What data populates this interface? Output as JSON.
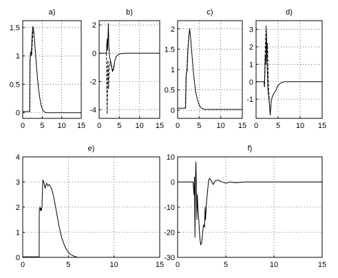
{
  "chart_data": [
    {
      "title": "a)",
      "type": "line",
      "xlim": [
        0,
        15
      ],
      "ylim": [
        -0.1,
        1.62
      ],
      "xticks": [
        "0",
        "5",
        "10",
        "15"
      ],
      "yticks": [
        "0",
        "0.5",
        "1",
        "1.5"
      ],
      "grid": true,
      "series": [
        {
          "style": "solid",
          "x": [
            0,
            1.8,
            1.85,
            2.0,
            2.2,
            2.4,
            2.6,
            2.8,
            3.0,
            3.2,
            3.5,
            3.8,
            4.1,
            4.4,
            4.7,
            5.0,
            5.4,
            6.0,
            7.0,
            9.0,
            15.0
          ],
          "y": [
            0.02,
            0.02,
            0.9,
            1.05,
            1.02,
            1.35,
            1.52,
            1.45,
            1.3,
            1.12,
            0.85,
            0.6,
            0.4,
            0.25,
            0.14,
            0.07,
            0.02,
            0.0,
            0.0,
            0.0,
            0.0
          ]
        },
        {
          "style": "dashed",
          "x": [
            1.8,
            1.9,
            2.1,
            2.3,
            2.5,
            2.7
          ],
          "y": [
            0.02,
            0.95,
            1.08,
            1.0,
            1.3,
            1.48
          ]
        }
      ]
    },
    {
      "title": "b)",
      "type": "line",
      "xlim": [
        0,
        15
      ],
      "ylim": [
        -4.6,
        2.3
      ],
      "xticks": [
        "0",
        "5",
        "10",
        "15"
      ],
      "yticks": [
        "-4",
        "-2",
        "0",
        "2"
      ],
      "grid": true,
      "series": [
        {
          "style": "solid",
          "x": [
            0,
            1.8,
            1.9,
            2.0,
            2.1,
            2.2,
            2.3,
            2.4,
            2.6,
            2.8,
            3.0,
            3.3,
            3.6,
            3.9,
            4.3,
            4.8,
            5.5,
            7,
            15
          ],
          "y": [
            0,
            0,
            0.6,
            1.0,
            0.2,
            1.2,
            2.1,
            0.5,
            -0.3,
            -0.5,
            -0.8,
            -1.3,
            -1.1,
            -0.5,
            -0.2,
            -0.1,
            -0.02,
            0,
            0
          ]
        },
        {
          "style": "dashed",
          "x": [
            1.8,
            1.9,
            2.0,
            2.1,
            2.2,
            2.35,
            2.5,
            2.7,
            3.0,
            3.4,
            3.8
          ],
          "y": [
            0,
            -2.0,
            -4.3,
            -1.5,
            -0.5,
            -2.5,
            -1.0,
            -0.6,
            -0.9,
            -1.2,
            -0.7
          ]
        }
      ]
    },
    {
      "title": "c)",
      "type": "line",
      "xlim": [
        0,
        15
      ],
      "ylim": [
        -0.2,
        2.2
      ],
      "xticks": [
        "0",
        "5",
        "10",
        "15"
      ],
      "yticks": [
        "0",
        "0.5",
        "1",
        "1.5",
        "2"
      ],
      "grid": true,
      "series": [
        {
          "style": "solid",
          "x": [
            0,
            1.8,
            1.85,
            2.0,
            2.2,
            2.4,
            2.6,
            2.8,
            3.0,
            3.3,
            3.6,
            3.9,
            4.2,
            4.5,
            4.9,
            5.4,
            6.2,
            8.0,
            15.0
          ],
          "y": [
            0.05,
            0.05,
            0.05,
            0.9,
            0.95,
            1.5,
            1.8,
            2.0,
            1.8,
            1.4,
            1.0,
            0.7,
            0.45,
            0.3,
            0.15,
            0.06,
            0.02,
            0.02,
            0.02
          ]
        },
        {
          "style": "dashed",
          "x": [
            1.8,
            1.95,
            2.15,
            2.35,
            2.55,
            2.75
          ],
          "y": [
            0.05,
            0.85,
            1.0,
            1.45,
            1.75,
            1.95
          ]
        }
      ]
    },
    {
      "title": "d)",
      "type": "line",
      "xlim": [
        0,
        15
      ],
      "ylim": [
        -2.1,
        3.5
      ],
      "xticks": [
        "0",
        "5",
        "10",
        "15"
      ],
      "yticks": [
        "-1",
        "0",
        "1",
        "2",
        "3"
      ],
      "grid": true,
      "series": [
        {
          "style": "solid",
          "x": [
            0,
            1.8,
            1.9,
            2.0,
            2.1,
            2.2,
            2.35,
            2.5,
            2.7,
            3.0,
            3.2,
            3.5,
            3.8,
            4.2,
            4.5,
            4.8,
            5.2,
            5.8,
            6.5,
            8,
            15
          ],
          "y": [
            0,
            0,
            -0.3,
            0.5,
            1.5,
            1.0,
            2.9,
            1.0,
            -0.5,
            -1.2,
            -1.9,
            -1.0,
            -0.8,
            -0.6,
            -0.5,
            -0.3,
            -0.15,
            -0.05,
            0,
            0,
            0
          ]
        },
        {
          "style": "dashed",
          "x": [
            1.9,
            2.1,
            2.3,
            2.45,
            2.6,
            2.8,
            3.1,
            3.3
          ],
          "y": [
            0,
            2.0,
            3.2,
            1.2,
            2.2,
            -0.2,
            -1.5,
            -2.0
          ]
        }
      ]
    },
    {
      "title": "e)",
      "type": "line",
      "xlim": [
        0,
        15
      ],
      "ylim": [
        0,
        4
      ],
      "xticks": [
        "0",
        "5",
        "10",
        "15"
      ],
      "yticks": [
        "0",
        "1",
        "2",
        "3",
        "4"
      ],
      "grid": true,
      "series": [
        {
          "style": "solid",
          "x": [
            0,
            1.8,
            1.81,
            1.9,
            1.95,
            2.0,
            2.05,
            2.1,
            2.2,
            2.3,
            2.45,
            2.6,
            2.75,
            2.9,
            3.05,
            3.2,
            3.4,
            3.6,
            3.8,
            4.0,
            4.3,
            4.6,
            4.9,
            5.2,
            5.6,
            6.0,
            7.0,
            15.0
          ],
          "y": [
            0.02,
            0.02,
            1.9,
            2.0,
            1.85,
            1.95,
            1.88,
            2.0,
            3.08,
            3.0,
            2.75,
            2.95,
            2.85,
            2.9,
            2.8,
            2.7,
            2.4,
            2.0,
            1.6,
            1.2,
            0.75,
            0.45,
            0.25,
            0.12,
            0.05,
            0.0,
            0.0,
            0.0
          ]
        }
      ]
    },
    {
      "title": "f)",
      "type": "line",
      "xlim": [
        0,
        15
      ],
      "ylim": [
        -30,
        10
      ],
      "xticks": [
        "0",
        "5",
        "10",
        "15"
      ],
      "yticks": [
        "-30",
        "-20",
        "-10",
        "0",
        "10"
      ],
      "grid": true,
      "series": [
        {
          "style": "solid",
          "x": [
            0,
            1.5,
            1.6,
            1.7,
            1.75,
            1.8,
            1.85,
            1.9,
            1.95,
            2.0,
            2.05,
            2.1,
            2.2,
            2.3,
            2.4,
            2.5,
            2.6,
            2.7,
            2.8,
            2.85,
            2.9,
            3.0,
            3.1,
            3.2,
            3.3,
            3.5,
            3.7,
            3.9,
            4.2,
            4.5,
            5.0,
            5.5,
            6.0,
            7.0,
            8.0,
            15.0
          ],
          "y": [
            0,
            0,
            0,
            -5,
            2,
            -22,
            0,
            8,
            -3,
            -15,
            -5,
            -10,
            -15,
            -22,
            -25,
            -24,
            -20,
            -17,
            -18,
            -10,
            -15,
            -8,
            -4,
            0,
            1.5,
            0.5,
            -1,
            0.5,
            0.8,
            0.2,
            -0.5,
            0,
            -0.3,
            0,
            0,
            0
          ]
        }
      ]
    }
  ]
}
